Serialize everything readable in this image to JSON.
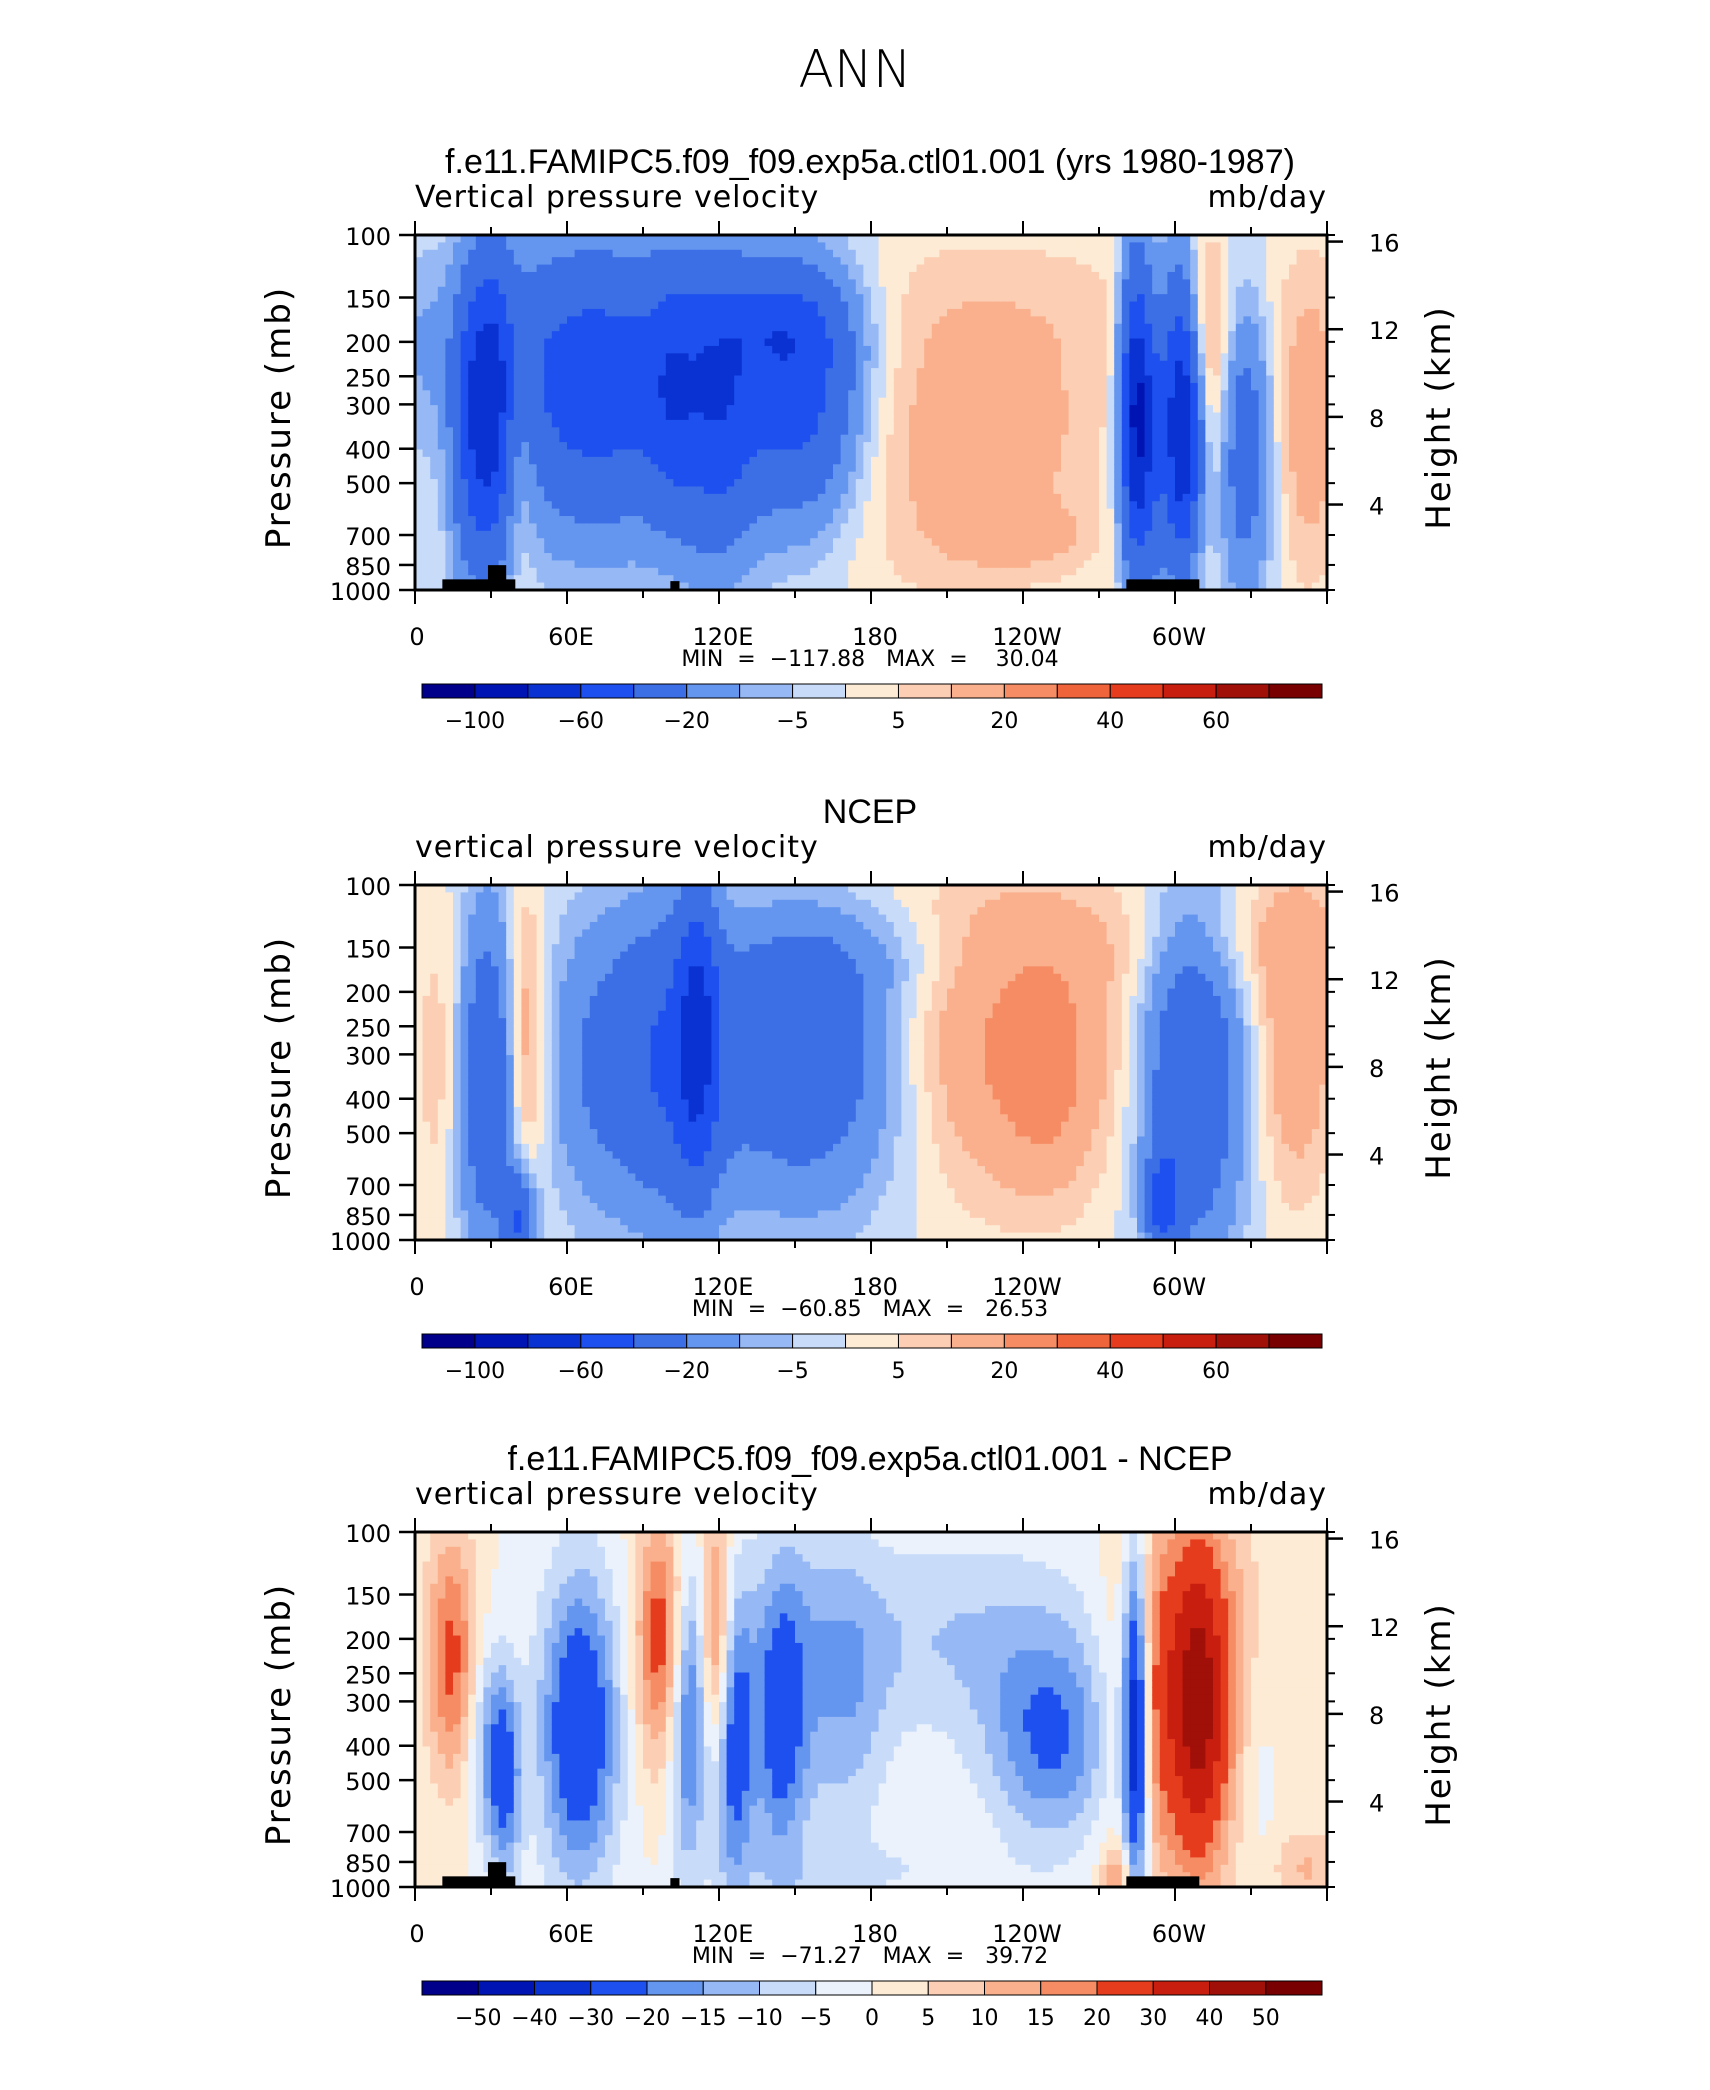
{
  "page": {
    "title": "ANN"
  },
  "panels": [
    {
      "title": "f.e11.FAMIPC5.f09_f09.exp5a.ctl01.001 (yrs 1980-1987)",
      "left_label": "Vertical pressure velocity",
      "right_label": "mb/day",
      "stats": "MIN  =  −117.88   MAX  =    30.04",
      "colorbar_labels": [
        "−100",
        "−60",
        "−20",
        "−5",
        "5",
        "20",
        "40",
        "60"
      ]
    },
    {
      "title": "NCEP",
      "left_label": "vertical pressure velocity",
      "right_label": "mb/day",
      "stats": "MIN  =  −60.85   MAX  =   26.53",
      "colorbar_labels": [
        "−100",
        "−60",
        "−20",
        "−5",
        "5",
        "20",
        "40",
        "60"
      ]
    },
    {
      "title": "f.e11.FAMIPC5.f09_f09.exp5a.ctl01.001 - NCEP",
      "left_label": "vertical pressure velocity",
      "right_label": "mb/day",
      "stats": "MIN  =  −71.27   MAX  =   39.72",
      "colorbar_labels": [
        "−50",
        "−40",
        "−30",
        "−20",
        "−15",
        "−10",
        "−5",
        "0",
        "5",
        "10",
        "15",
        "20",
        "30",
        "40",
        "50"
      ]
    }
  ],
  "chart_data": {
    "type": "contour",
    "y_label": "Pressure (mb)",
    "y_ticks": [
      100,
      150,
      200,
      250,
      300,
      400,
      500,
      700,
      850,
      1000
    ],
    "y2_label": "Height (km)",
    "y2_ticks": [
      16,
      12,
      8,
      4
    ],
    "x_ticks": [
      "0",
      "60E",
      "120E",
      "180",
      "120W",
      "60W"
    ],
    "palette": [
      "#00008b",
      "#0014b4",
      "#0a32d2",
      "#1e50f0",
      "#3c6ee6",
      "#6496f0",
      "#96b9f5",
      "#c8dcfa",
      "#ebf2fc",
      "#fdebd5",
      "#fcceb4",
      "#fab08c",
      "#f58c64",
      "#f0643c",
      "#e63c1e",
      "#c81e0f",
      "#a00f08",
      "#780000"
    ],
    "panels": [
      {
        "name": "f.e11.FAMIPC5.f09_f09.exp5a.ctl01.001 (yrs 1980-1987)",
        "min": -117.88,
        "max": 30.04,
        "colorbar_levels": [
          -100,
          -80,
          -60,
          -40,
          -20,
          -10,
          -5,
          0,
          5,
          10,
          20,
          30,
          40,
          50,
          60,
          70
        ]
      },
      {
        "name": "NCEP",
        "min": -60.85,
        "max": 26.53,
        "colorbar_levels": [
          -100,
          -80,
          -60,
          -40,
          -20,
          -10,
          -5,
          0,
          5,
          10,
          20,
          30,
          40,
          50,
          60,
          70
        ]
      },
      {
        "name": "f.e11.FAMIPC5.f09_f09.exp5a.ctl01.001 - NCEP",
        "min": -71.27,
        "max": 39.72,
        "colorbar_levels": [
          -50,
          -40,
          -30,
          -20,
          -15,
          -10,
          -5,
          0,
          5,
          10,
          15,
          20,
          30,
          40,
          50
        ]
      }
    ]
  }
}
